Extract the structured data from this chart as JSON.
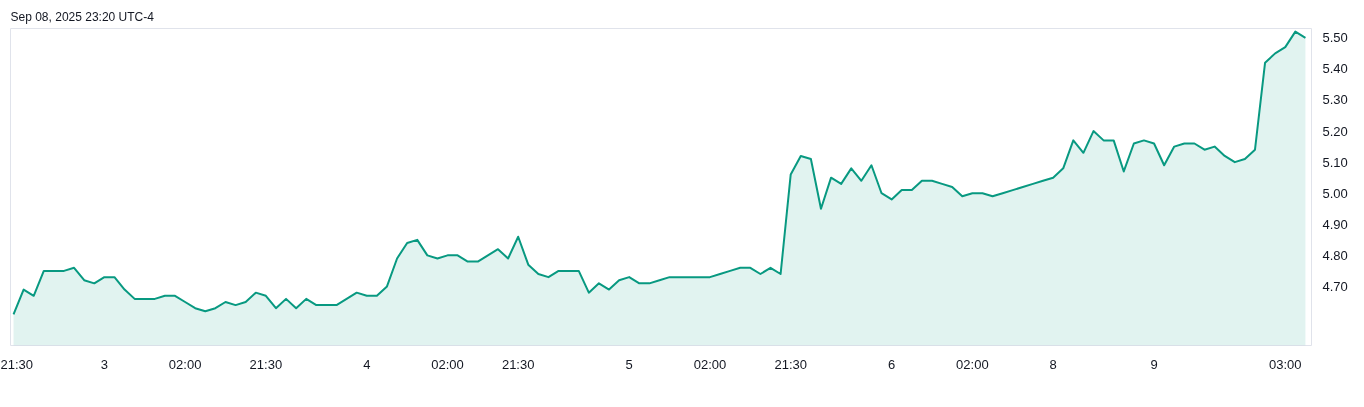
{
  "chart_data": {
    "type": "area",
    "annotations": [
      "Sep 08, 2025 23:20 UTC-4"
    ],
    "categories": [
      "21:30",
      null,
      null,
      null,
      null,
      null,
      null,
      null,
      null,
      "3",
      null,
      null,
      null,
      null,
      null,
      null,
      null,
      "02:00",
      null,
      null,
      null,
      null,
      null,
      null,
      null,
      "21:30",
      null,
      null,
      null,
      null,
      null,
      null,
      null,
      null,
      null,
      "4",
      null,
      null,
      null,
      null,
      null,
      null,
      null,
      "02:00",
      null,
      null,
      null,
      null,
      null,
      null,
      "21:30",
      null,
      null,
      null,
      null,
      null,
      null,
      null,
      null,
      null,
      null,
      "5",
      null,
      null,
      null,
      null,
      null,
      null,
      null,
      "02:00",
      null,
      null,
      null,
      null,
      null,
      null,
      null,
      "21:30",
      null,
      null,
      null,
      null,
      null,
      null,
      null,
      null,
      null,
      "6",
      null,
      null,
      null,
      null,
      null,
      null,
      null,
      "02:00",
      null,
      null,
      null,
      null,
      null,
      null,
      null,
      "8",
      null,
      null,
      null,
      null,
      null,
      null,
      null,
      null,
      null,
      "9",
      null,
      null,
      null,
      null,
      null,
      null,
      null,
      null,
      null,
      null,
      null,
      null,
      "03:00",
      null,
      null
    ],
    "series": [
      {
        "color": "#089981",
        "values": [
          4.61,
          4.69,
          4.67,
          4.75,
          4.75,
          4.75,
          4.76,
          4.72,
          4.71,
          4.73,
          4.73,
          4.69,
          4.66,
          4.66,
          4.66,
          4.67,
          4.67,
          4.65,
          4.63,
          4.62,
          4.63,
          4.65,
          4.64,
          4.65,
          4.68,
          4.67,
          4.63,
          4.66,
          4.63,
          4.66,
          4.64,
          4.64,
          4.64,
          4.66,
          4.68,
          4.67,
          4.67,
          4.7,
          4.79,
          4.84,
          4.85,
          4.8,
          4.79,
          4.8,
          4.8,
          4.78,
          4.78,
          4.8,
          4.82,
          4.79,
          4.86,
          4.77,
          4.74,
          4.73,
          4.75,
          4.75,
          4.75,
          4.68,
          4.71,
          4.69,
          4.72,
          4.73,
          4.71,
          4.71,
          4.72,
          4.73,
          4.73,
          4.73,
          4.73,
          4.73,
          4.74,
          4.75,
          4.76,
          4.76,
          4.74,
          4.76,
          4.74,
          5.06,
          5.12,
          5.11,
          4.95,
          5.05,
          5.03,
          5.08,
          5.04,
          5.09,
          5.0,
          4.98,
          5.01,
          5.01,
          5.04,
          5.04,
          5.03,
          5.02,
          4.99,
          5.0,
          5.0,
          4.99,
          5.0,
          5.01,
          5.02,
          5.03,
          5.04,
          5.05,
          5.08,
          5.17,
          5.13,
          5.2,
          5.17,
          5.17,
          5.07,
          5.16,
          5.17,
          5.16,
          5.09,
          5.15,
          5.16,
          5.16,
          5.14,
          5.15,
          5.12,
          5.1,
          5.11,
          5.14,
          5.42,
          5.45,
          5.47,
          5.52,
          5.5
        ]
      }
    ],
    "ylim": [
      4.51,
      5.53
    ],
    "yticks": [
      {
        "value": 4.7,
        "label": "4.70"
      },
      {
        "value": 4.8,
        "label": "4.80"
      },
      {
        "value": 4.9,
        "label": "4.90"
      },
      {
        "value": 5.0,
        "label": "5.00"
      },
      {
        "value": 5.1,
        "label": "5.10"
      },
      {
        "value": 5.2,
        "label": "5.20"
      },
      {
        "value": 5.3,
        "label": "5.30"
      },
      {
        "value": 5.4,
        "label": "5.40"
      },
      {
        "value": 5.5,
        "label": "5.50"
      }
    ],
    "grid": false
  }
}
